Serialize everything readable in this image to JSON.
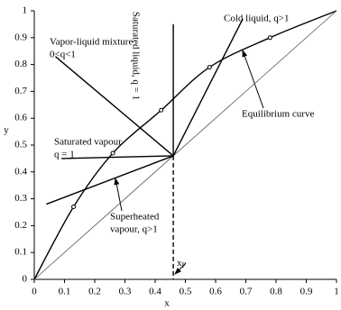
{
  "chart_data": {
    "type": "line",
    "xlabel": "x",
    "ylabel": "y",
    "xlim": [
      0,
      1
    ],
    "ylim": [
      0,
      1
    ],
    "xticks": [
      0,
      0.1,
      0.2,
      0.3,
      0.4,
      0.5,
      0.6,
      0.7,
      0.8,
      0.9,
      1
    ],
    "yticks": [
      0,
      0.1,
      0.2,
      0.3,
      0.4,
      0.5,
      0.6,
      0.7,
      0.8,
      0.9,
      1
    ],
    "series": [
      {
        "kind": "curve",
        "color": "#000000",
        "x": [
          0,
          0.13,
          0.26,
          0.42,
          0.58,
          0.78,
          1
        ],
        "values": [
          0,
          0.27,
          0.47,
          0.63,
          0.79,
          0.9,
          1
        ]
      },
      {
        "kind": "thin",
        "color": "#555555",
        "x": [
          0,
          1
        ],
        "values": [
          0,
          1
        ]
      },
      {
        "kind": "line",
        "color": "#000000",
        "x": [
          0.46,
          0.46
        ],
        "values": [
          0.46,
          0.95
        ]
      },
      {
        "kind": "line",
        "color": "#000000",
        "x": [
          0.46,
          0.69
        ],
        "values": [
          0.46,
          0.97
        ]
      },
      {
        "kind": "line",
        "color": "#000000",
        "x": [
          0.07,
          0.46
        ],
        "values": [
          0.83,
          0.46
        ]
      },
      {
        "kind": "line",
        "color": "#000000",
        "x": [
          0.09,
          0.46
        ],
        "values": [
          0.45,
          0.46
        ]
      },
      {
        "kind": "line",
        "color": "#000000",
        "x": [
          0.04,
          0.46
        ],
        "values": [
          0.28,
          0.46
        ]
      },
      {
        "kind": "dashed",
        "color": "#000000",
        "x": [
          0.46,
          0.46
        ],
        "values": [
          0.46,
          0
        ]
      }
    ],
    "annotations": [
      "Cold liquid, q>1",
      "Vapor-liquid mixture",
      "0<q<1",
      "Saturated liquid, q = 1",
      "Saturated vapour",
      "q = 1",
      "Equilibrium curve",
      "Superheated",
      "vapour, q>1"
    ],
    "feed_label": {
      "text": "x",
      "sub": "F"
    }
  }
}
